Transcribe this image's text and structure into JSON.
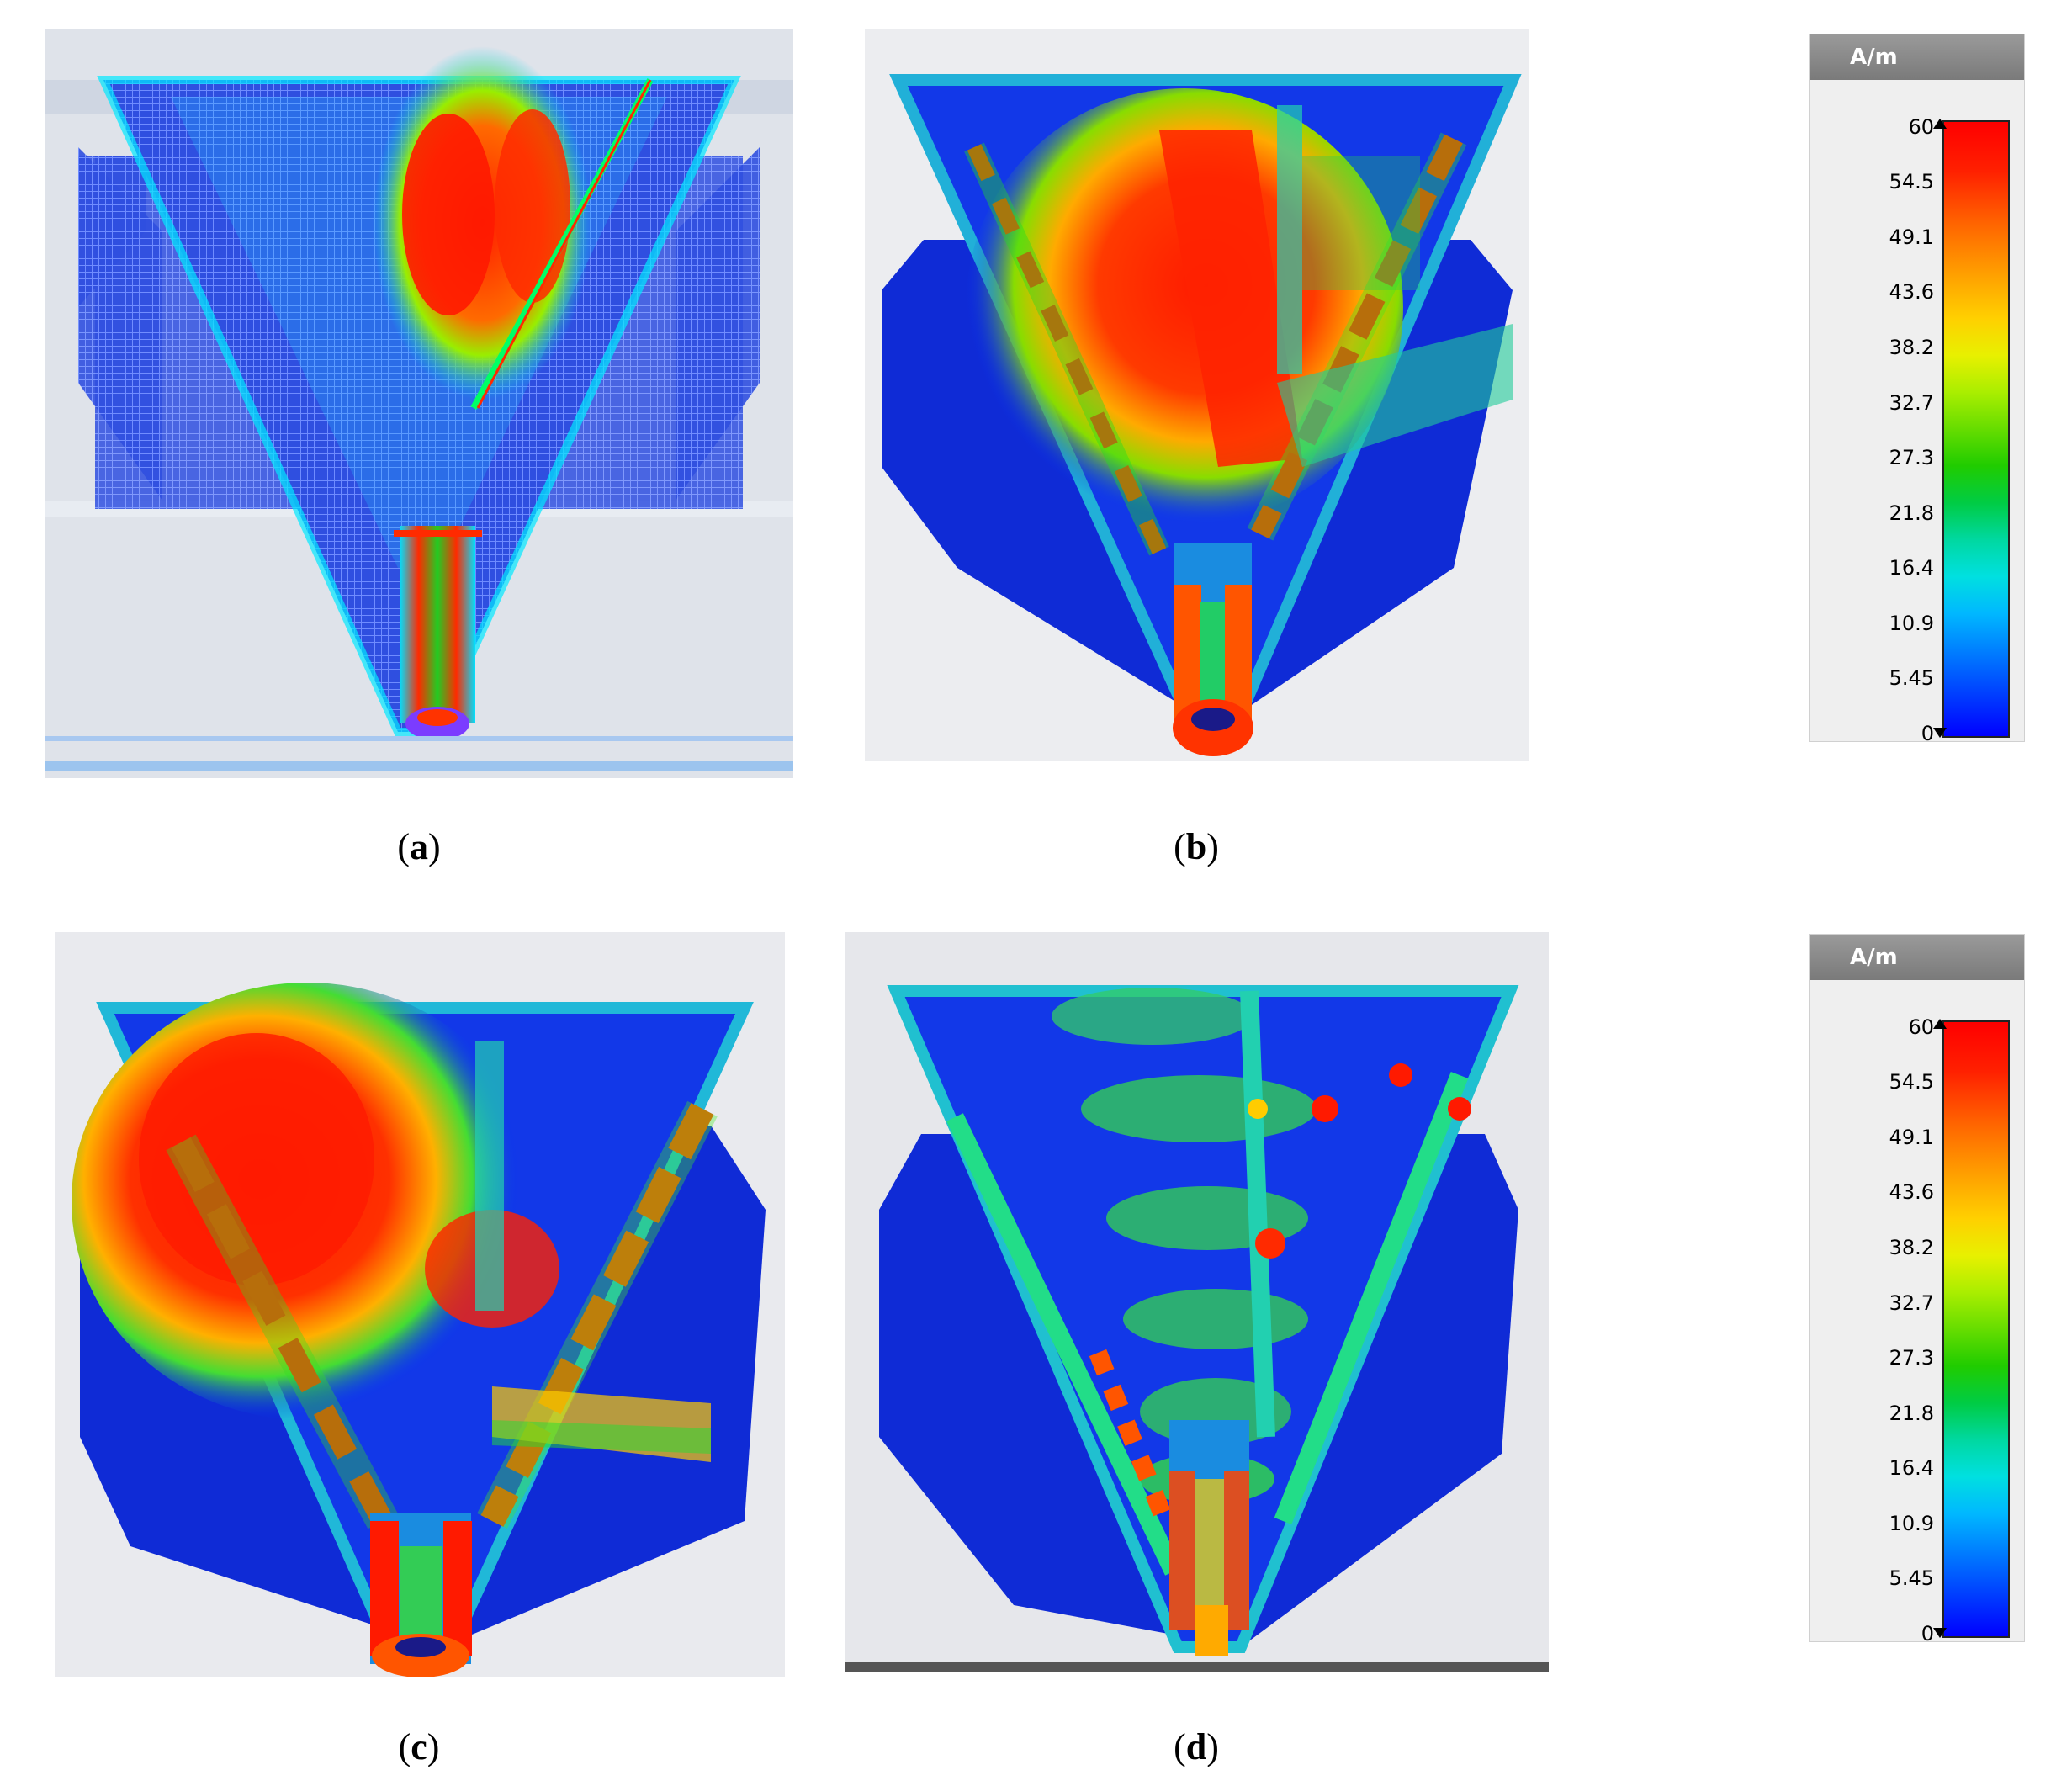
{
  "panels": [
    {
      "id": "a",
      "caption_letter": "a"
    },
    {
      "id": "b",
      "caption_letter": "b"
    },
    {
      "id": "c",
      "caption_letter": "c"
    },
    {
      "id": "d",
      "caption_letter": "d"
    }
  ],
  "legends": [
    {
      "unit": "A/m",
      "ticks": [
        "60",
        "54.5",
        "49.1",
        "43.6",
        "38.2",
        "32.7",
        "27.3",
        "21.8",
        "16.4",
        "10.9",
        "5.45",
        "0"
      ]
    },
    {
      "unit": "A/m",
      "ticks": [
        "60",
        "54.5",
        "49.1",
        "43.6",
        "38.2",
        "32.7",
        "27.3",
        "21.8",
        "16.4",
        "10.9",
        "5.45",
        "0"
      ]
    }
  ],
  "colors": {
    "low": "#0000ff",
    "mid": "#00cc44",
    "high": "#ff0000",
    "panel_bg": "#d6d8de"
  }
}
